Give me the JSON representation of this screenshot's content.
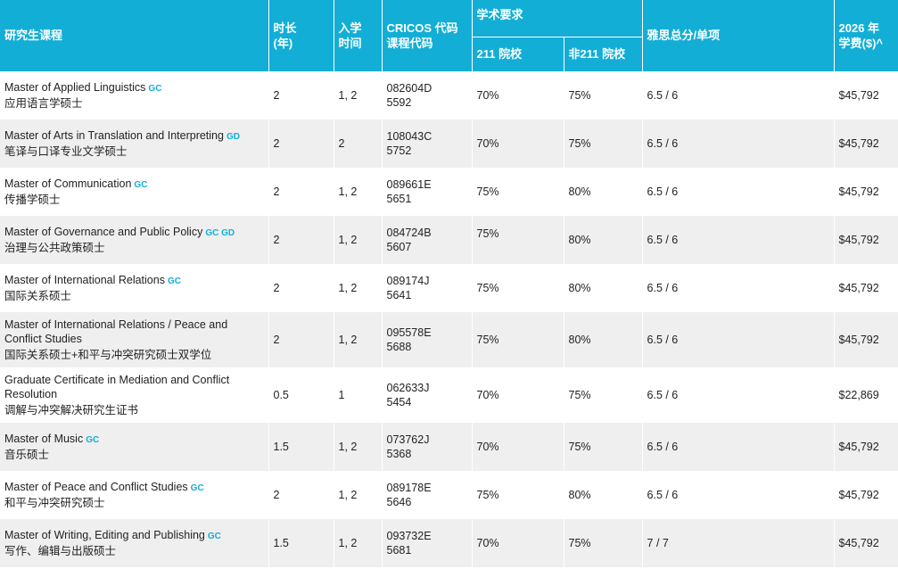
{
  "header": {
    "program": "研究生课程",
    "duration": "时长\n(年)",
    "intake": "入学\n时间",
    "cricos": "CRICOS 代码\n课程代码",
    "academic": "学术要求",
    "tier211": "211 院校",
    "non211": "非211 院校",
    "ielts": "雅思总分/单项",
    "fee": "2026 年\n学费($)^"
  },
  "courses": [
    {
      "name_en": "Master of Applied Linguistics",
      "tags": "GC",
      "name_cn": "应用语言学硕士",
      "duration": "2",
      "intake": "1, 2",
      "cricos": "082604D",
      "code": "5592",
      "r211": "70%",
      "rnon211": "75%",
      "ielts": "6.5 / 6",
      "fee": "$45,792"
    },
    {
      "name_en": "Master of Arts in Translation and Interpreting",
      "tags": "GD",
      "name_cn": "笔译与口译专业文学硕士",
      "duration": "2",
      "intake": "2",
      "cricos": "108043C",
      "code": "5752",
      "r211": "70%",
      "rnon211": "75%",
      "ielts": "6.5 / 6",
      "fee": "$45,792"
    },
    {
      "name_en": "Master of Communication",
      "tags": "GC",
      "name_cn": "传播学硕士",
      "duration": "2",
      "intake": "1, 2",
      "cricos": "089661E",
      "code": "5651",
      "r211": "75%",
      "rnon211": "80%",
      "ielts": "6.5 / 6",
      "fee": "$45,792"
    },
    {
      "name_en": "Master of Governance and Public Policy",
      "tags": "GC GD",
      "name_cn": "治理与公共政策硕士",
      "duration": "2",
      "intake": "1, 2",
      "cricos": "084724B",
      "code": "5607",
      "r211": "75%",
      "rnon211": "80%",
      "ielts": "6.5 / 6",
      "fee": "$45,792"
    },
    {
      "name_en": "Master of International Relations",
      "tags": "GC",
      "name_cn": "国际关系硕士",
      "duration": "2",
      "intake": "1, 2",
      "cricos": "089174J",
      "code": "5641",
      "r211": "75%",
      "rnon211": "80%",
      "ielts": "6.5 / 6",
      "fee": "$45,792"
    },
    {
      "name_en": "Master of International Relations / Peace and Conflict Studies",
      "tags": "",
      "name_cn": "国际关系硕士+和平与冲突研究硕士双学位",
      "duration": "2",
      "intake": "1, 2",
      "cricos": "095578E",
      "code": "5688",
      "r211": "75%",
      "rnon211": "80%",
      "ielts": "6.5 / 6",
      "fee": "$45,792"
    },
    {
      "name_en": "Graduate Certificate in Mediation and Conflict Resolution",
      "tags": "",
      "name_cn": "调解与冲突解决研究生证书",
      "duration": "0.5",
      "intake": "1",
      "cricos": "062633J",
      "code": "5454",
      "r211": "70%",
      "rnon211": "75%",
      "ielts": "6.5 / 6",
      "fee": "$22,869"
    },
    {
      "name_en": "Master of Music",
      "tags": "GC",
      "name_cn": "音乐硕士",
      "duration": "1.5",
      "intake": "1, 2",
      "cricos": "073762J",
      "code": "5368",
      "r211": "70%",
      "rnon211": "75%",
      "ielts": "6.5 / 6",
      "fee": "$45,792"
    },
    {
      "name_en": "Master of Peace and Conflict Studies",
      "tags": "GC",
      "name_cn": "和平与冲突研究硕士",
      "duration": "2",
      "intake": "1, 2",
      "cricos": "089178E",
      "code": "5646",
      "r211": "75%",
      "rnon211": "80%",
      "ielts": "6.5 / 6",
      "fee": "$45,792"
    },
    {
      "name_en": "Master of Writing, Editing and Publishing",
      "tags": "GC",
      "name_cn": "写作、编辑与出版硕士",
      "duration": "1.5",
      "intake": "1, 2",
      "cricos": "093732E",
      "code": "5681",
      "r211": "70%",
      "rnon211": "75%",
      "ielts": "7 / 7",
      "fee": "$45,792"
    }
  ]
}
